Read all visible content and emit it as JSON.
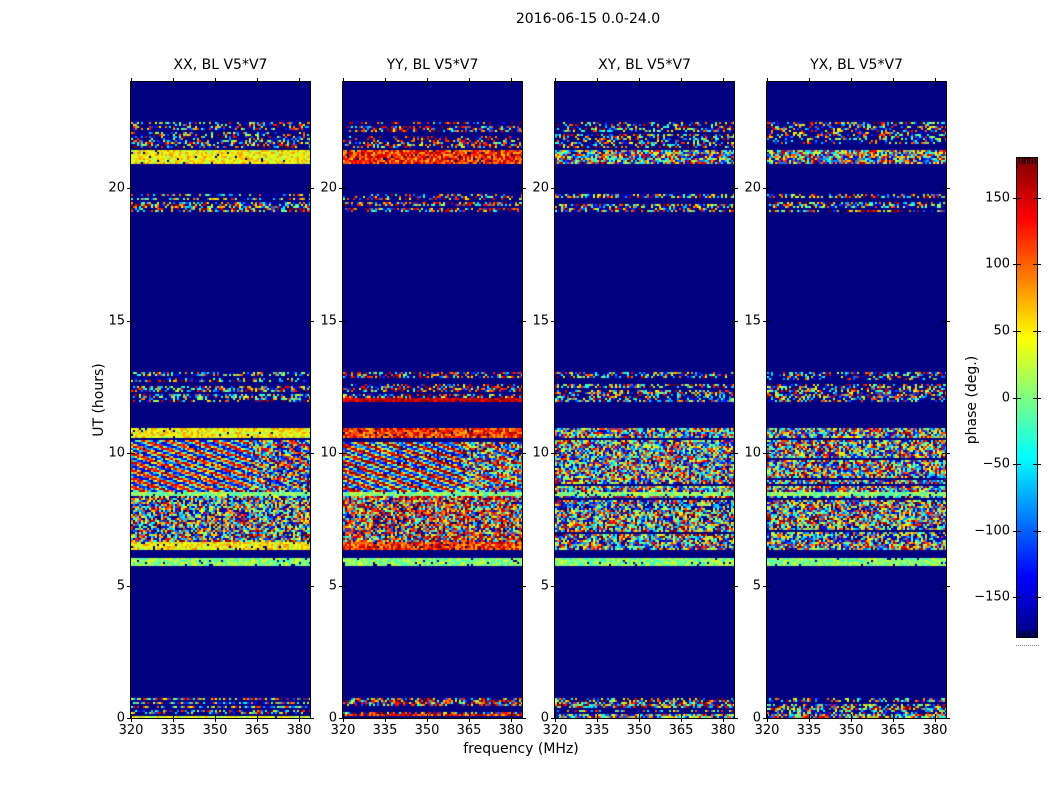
{
  "chart_data": {
    "type": "heatmap",
    "title": "2016-06-15 0.0-24.0",
    "xlabel": "frequency (MHz)",
    "ylabel": "UT (hours)",
    "xlim": [
      320,
      384
    ],
    "ylim": [
      0,
      24
    ],
    "x_ticks": [
      320,
      335,
      350,
      365,
      380
    ],
    "y_ticks": [
      0,
      5,
      10,
      15,
      20
    ],
    "grid": false,
    "panels": [
      {
        "id": "xx",
        "title": "XX, BL V5*V7",
        "fringes": true,
        "warm": false
      },
      {
        "id": "yy",
        "title": "YY, BL V5*V7",
        "fringes": true,
        "warm": true
      },
      {
        "id": "xy",
        "title": "XY, BL V5*V7",
        "fringes": false,
        "warm": false
      },
      {
        "id": "yx",
        "title": "YX, BL V5*V7",
        "fringes": false,
        "warm": false
      }
    ],
    "colorbar": {
      "label": "phase (deg.)",
      "range": [
        -180,
        180
      ],
      "ticks": [
        150,
        100,
        50,
        0,
        -50,
        -100,
        -150
      ],
      "tick_labels": [
        "150",
        "100",
        "50",
        "0",
        "−50",
        "−100",
        "−150"
      ],
      "colormap": "jet"
    },
    "background_phase_deg": -180,
    "bands": [
      {
        "t0": 21.5,
        "t1": 22.45,
        "kind": "speckle",
        "density": 0.6
      },
      {
        "t0": 20.9,
        "t1": 21.4,
        "kind": "bright",
        "density": 1.0
      },
      {
        "t0": 19.5,
        "t1": 19.75,
        "kind": "speckle",
        "density": 0.65
      },
      {
        "t0": 19.05,
        "t1": 19.45,
        "kind": "speckle",
        "density": 0.75
      },
      {
        "t0": 12.65,
        "t1": 13.05,
        "kind": "speckle",
        "density": 0.65
      },
      {
        "t0": 11.9,
        "t1": 12.62,
        "kind": "speckle",
        "density": 0.8,
        "warm_edge": true
      },
      {
        "t0": 10.55,
        "t1": 10.95,
        "kind": "bright",
        "density": 1.0
      },
      {
        "t0": 8.52,
        "t1": 10.5,
        "kind": "fringe",
        "density": 1.0
      },
      {
        "t0": 8.36,
        "t1": 8.52,
        "kind": "green",
        "density": 1.0
      },
      {
        "t0": 6.62,
        "t1": 8.34,
        "kind": "dense",
        "density": 0.95
      },
      {
        "t0": 6.3,
        "t1": 6.62,
        "kind": "bright",
        "density": 1.0
      },
      {
        "t0": 5.75,
        "t1": 6.05,
        "kind": "green",
        "density": 0.9
      },
      {
        "t0": 0.0,
        "t1": 0.7,
        "kind": "speckle",
        "density": 0.85,
        "bright_base": true
      }
    ],
    "colors": {
      "figure_background": "#ffffff",
      "heat_background": "#00007f",
      "frame": "#000000",
      "text": "#000000"
    }
  }
}
